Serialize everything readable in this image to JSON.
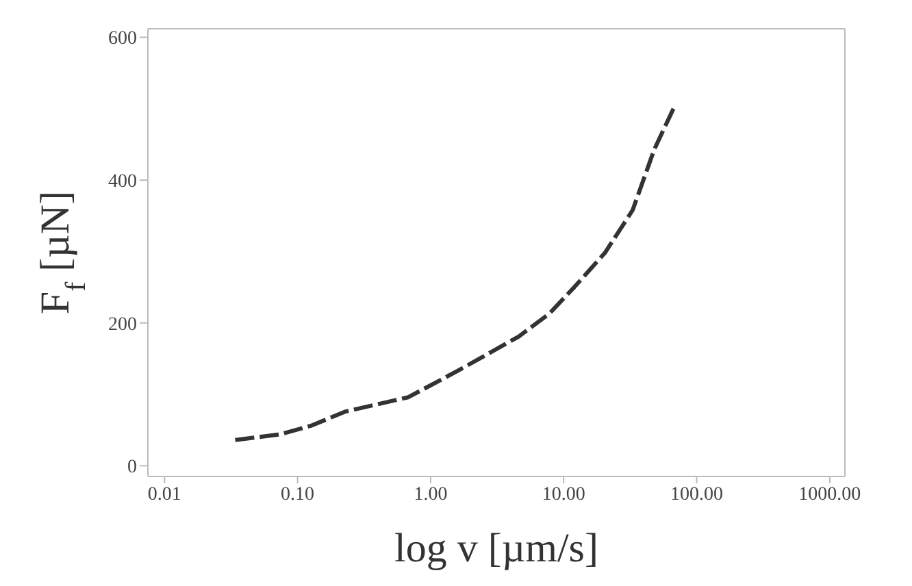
{
  "chart_data": {
    "type": "line",
    "xlabel": "log v [µm/s]",
    "ylabel": "F$_{f}$ [µN]",
    "log": "x",
    "xlim": [
      0.0075,
      1300
    ],
    "xticks": [
      {
        "value": 0.01,
        "label": "0.01"
      },
      {
        "value": 0.1,
        "label": "0.10"
      },
      {
        "value": 1,
        "label": "1.00"
      },
      {
        "value": 10,
        "label": "10.00"
      },
      {
        "value": 100,
        "label": "100.00"
      },
      {
        "value": 1000,
        "label": "1000.00"
      }
    ],
    "ylim": [
      -15,
      612
    ],
    "yticks": [
      0,
      200,
      400,
      600
    ],
    "line_style": "dashed",
    "grid": false,
    "x": [
      0.034,
      0.074,
      0.126,
      0.23,
      0.68,
      1.6,
      4.6,
      7.8,
      12,
      20.4,
      33,
      48,
      68
    ],
    "series": [
      {
        "color": "#333333",
        "values": [
          36,
          44,
          56,
          76,
          96,
          133,
          181,
          213,
          250,
          298,
          358,
          443,
          503
        ]
      }
    ]
  }
}
